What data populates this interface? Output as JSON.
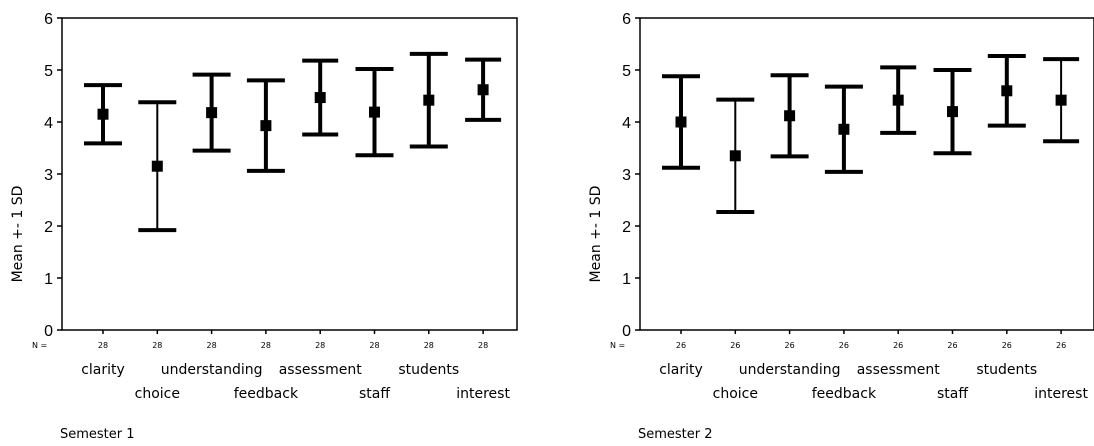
{
  "chart_data": [
    {
      "type": "errorbar",
      "caption": "Semester 1",
      "ylabel": "Mean +- 1 SD",
      "ylim": [
        0,
        6
      ],
      "yticks": [
        "0",
        "1",
        "2",
        "3",
        "4",
        "5",
        "6"
      ],
      "n_label": "N =",
      "categories": [
        "clarity",
        "choice",
        "understanding",
        "feedback",
        "assessment",
        "staff",
        "students",
        "interest"
      ],
      "n": [
        "28",
        "28",
        "28",
        "28",
        "28",
        "28",
        "28",
        "28"
      ],
      "mean": [
        4.15,
        3.15,
        4.18,
        3.93,
        4.47,
        4.19,
        4.42,
        4.62
      ],
      "sd": [
        0.56,
        1.23,
        0.73,
        0.87,
        0.71,
        0.83,
        0.89,
        0.58
      ]
    },
    {
      "type": "errorbar",
      "caption": "Semester 2",
      "ylabel": "Mean +- 1 SD",
      "ylim": [
        0,
        6
      ],
      "yticks": [
        "0",
        "1",
        "2",
        "3",
        "4",
        "5",
        "6"
      ],
      "n_label": "N =",
      "categories": [
        "clarity",
        "choice",
        "understanding",
        "feedback",
        "assessment",
        "staff",
        "students",
        "interest"
      ],
      "n": [
        "26",
        "26",
        "26",
        "26",
        "26",
        "26",
        "26",
        "26"
      ],
      "mean": [
        4.0,
        3.35,
        4.12,
        3.86,
        4.42,
        4.2,
        4.6,
        4.42
      ],
      "sd": [
        0.88,
        1.08,
        0.78,
        0.82,
        0.63,
        0.8,
        0.67,
        0.79
      ]
    }
  ]
}
